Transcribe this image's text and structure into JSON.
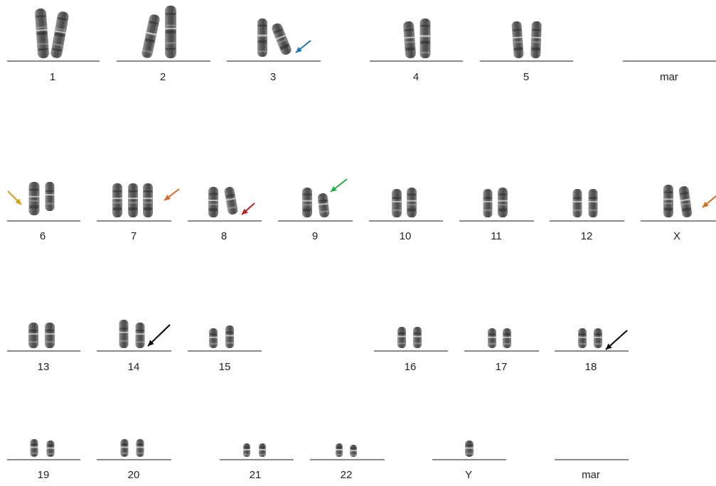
{
  "labels": [
    "1",
    "2",
    "3",
    "4",
    "5",
    "mar",
    "6",
    "7",
    "8",
    "9",
    "10",
    "11",
    "12",
    "X",
    "13",
    "14",
    "15",
    "16",
    "17",
    "18",
    "19",
    "20",
    "21",
    "22",
    "Y",
    "mar"
  ],
  "colors": {
    "baseline": "#8a8a8a",
    "chromatid": "#4a4a4a",
    "arrow_blue": "#1f77b4",
    "arrow_gold": "#d4a017",
    "arrow_orange": "#d2691e",
    "arrow_red": "#b22222",
    "arrow_green": "#22b14c",
    "arrow_black": "#000000"
  }
}
